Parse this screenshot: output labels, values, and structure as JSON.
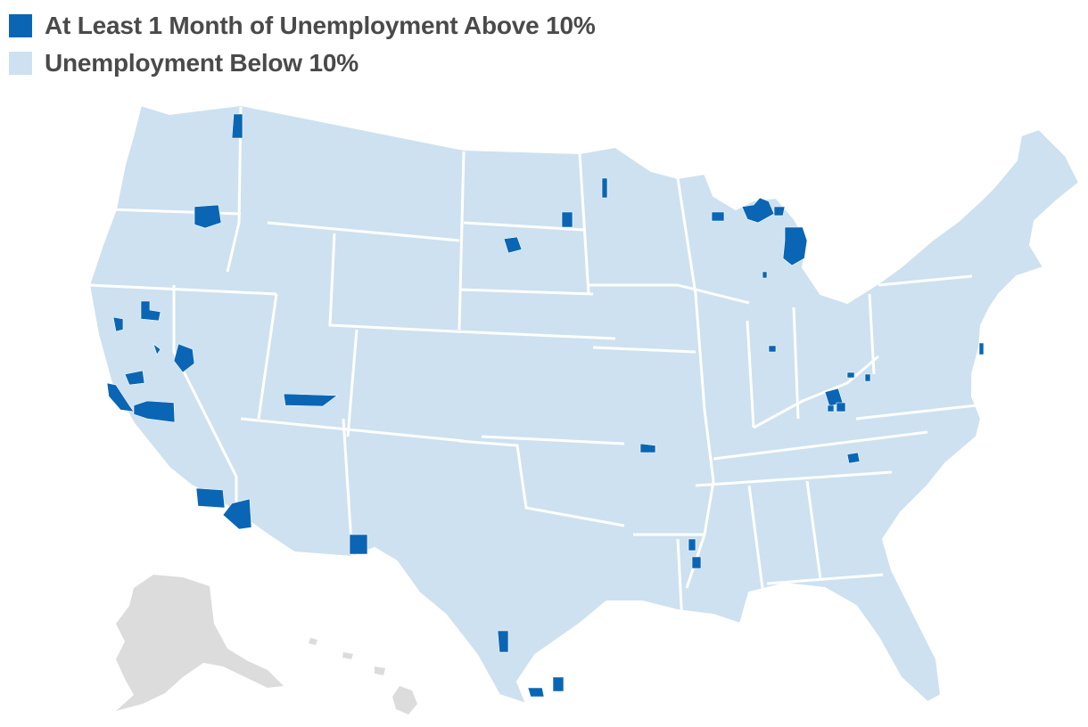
{
  "legend": {
    "items": [
      {
        "label": "At Least 1 Month of Unemployment Above 10%",
        "color": "#0a66b4"
      },
      {
        "label": "Unemployment Below 10%",
        "color": "#cde1f0"
      }
    ]
  },
  "map_data": {
    "type": "choropleth",
    "unit": "U.S. counties",
    "colors": {
      "above_10": "#0a66b4",
      "below_10": "#cde1f0",
      "not_shown": "#dcdcdc",
      "borders": "#ffffff"
    },
    "highlighted_county_areas": [
      "Washington",
      "Oregon",
      "California",
      "Arizona",
      "Utah",
      "New Mexico",
      "South Dakota",
      "Minnesota",
      "Wisconsin",
      "Michigan",
      "Indiana",
      "Ohio",
      "Kentucky",
      "Tennessee",
      "Missouri",
      "Mississippi",
      "Texas",
      "New Jersey"
    ],
    "alaska_hawaii_shown": "gray"
  }
}
